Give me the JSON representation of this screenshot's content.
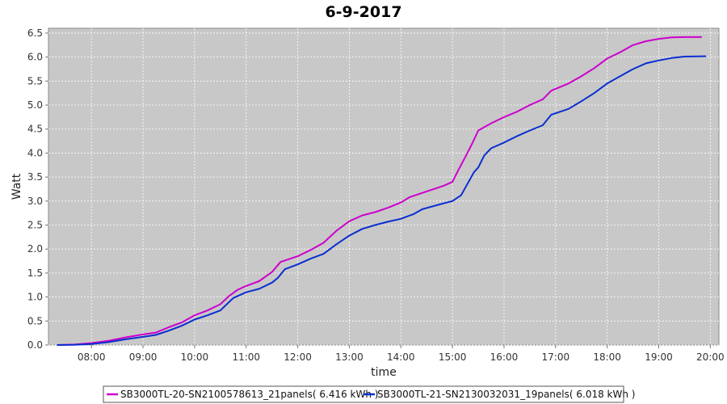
{
  "chart_data": {
    "type": "line",
    "title": "6-9-2017",
    "xlabel": "time",
    "ylabel": "Watt",
    "xlim": [
      "07:10",
      "20:10"
    ],
    "ylim": [
      0,
      6.6
    ],
    "x_ticks": [
      "08:00",
      "09:00",
      "10:00",
      "11:00",
      "12:00",
      "13:00",
      "14:00",
      "15:00",
      "16:00",
      "17:00",
      "18:00",
      "19:00",
      "20:00"
    ],
    "y_ticks": [
      "0.0",
      "0.5",
      "1.0",
      "1.5",
      "2.0",
      "2.5",
      "3.0",
      "3.5",
      "4.0",
      "4.5",
      "5.0",
      "5.5",
      "6.0",
      "6.5"
    ],
    "grid": true,
    "legend_position": "bottom",
    "plot_background": "#c8c8c8",
    "series": [
      {
        "name": "SB3000TL-20-SN2100578613_21panels( 6.416 kWh )",
        "color": "#cc00cc",
        "points": [
          [
            "07:20",
            0.0
          ],
          [
            "07:40",
            0.01
          ],
          [
            "08:00",
            0.04
          ],
          [
            "08:20",
            0.09
          ],
          [
            "08:40",
            0.16
          ],
          [
            "09:00",
            0.22
          ],
          [
            "09:15",
            0.26
          ],
          [
            "09:30",
            0.37
          ],
          [
            "09:45",
            0.47
          ],
          [
            "10:00",
            0.62
          ],
          [
            "10:15",
            0.72
          ],
          [
            "10:30",
            0.85
          ],
          [
            "10:40",
            1.02
          ],
          [
            "10:50",
            1.15
          ],
          [
            "11:00",
            1.23
          ],
          [
            "11:15",
            1.33
          ],
          [
            "11:30",
            1.52
          ],
          [
            "11:40",
            1.73
          ],
          [
            "12:00",
            1.85
          ],
          [
            "12:15",
            1.98
          ],
          [
            "12:30",
            2.13
          ],
          [
            "12:45",
            2.38
          ],
          [
            "13:00",
            2.58
          ],
          [
            "13:15",
            2.7
          ],
          [
            "13:30",
            2.77
          ],
          [
            "13:45",
            2.86
          ],
          [
            "14:00",
            2.97
          ],
          [
            "14:10",
            3.08
          ],
          [
            "14:30",
            3.2
          ],
          [
            "14:50",
            3.32
          ],
          [
            "15:00",
            3.4
          ],
          [
            "15:07",
            3.65
          ],
          [
            "15:15",
            3.92
          ],
          [
            "15:23",
            4.2
          ],
          [
            "15:30",
            4.47
          ],
          [
            "15:45",
            4.62
          ],
          [
            "16:00",
            4.75
          ],
          [
            "16:15",
            4.86
          ],
          [
            "16:30",
            5.0
          ],
          [
            "16:45",
            5.12
          ],
          [
            "16:55",
            5.3
          ],
          [
            "17:15",
            5.45
          ],
          [
            "17:30",
            5.6
          ],
          [
            "17:45",
            5.77
          ],
          [
            "18:00",
            5.97
          ],
          [
            "18:15",
            6.1
          ],
          [
            "18:30",
            6.25
          ],
          [
            "18:45",
            6.33
          ],
          [
            "19:00",
            6.38
          ],
          [
            "19:15",
            6.41
          ],
          [
            "19:30",
            6.416
          ],
          [
            "19:50",
            6.416
          ]
        ]
      },
      {
        "name": "SB3000TL-21-SN2130032031_19panels( 6.018 kWh )",
        "color": "#0a2ed0",
        "points": [
          [
            "07:20",
            0.0
          ],
          [
            "07:40",
            0.005
          ],
          [
            "08:00",
            0.02
          ],
          [
            "08:20",
            0.06
          ],
          [
            "08:40",
            0.12
          ],
          [
            "09:00",
            0.17
          ],
          [
            "09:15",
            0.21
          ],
          [
            "09:30",
            0.3
          ],
          [
            "09:45",
            0.4
          ],
          [
            "10:00",
            0.53
          ],
          [
            "10:15",
            0.62
          ],
          [
            "10:30",
            0.72
          ],
          [
            "10:45",
            0.98
          ],
          [
            "11:00",
            1.1
          ],
          [
            "11:15",
            1.17
          ],
          [
            "11:30",
            1.3
          ],
          [
            "11:37",
            1.4
          ],
          [
            "11:45",
            1.58
          ],
          [
            "12:00",
            1.68
          ],
          [
            "12:15",
            1.8
          ],
          [
            "12:30",
            1.9
          ],
          [
            "12:45",
            2.1
          ],
          [
            "13:00",
            2.28
          ],
          [
            "13:15",
            2.42
          ],
          [
            "13:30",
            2.5
          ],
          [
            "13:45",
            2.57
          ],
          [
            "14:00",
            2.63
          ],
          [
            "14:15",
            2.73
          ],
          [
            "14:25",
            2.83
          ],
          [
            "14:45",
            2.93
          ],
          [
            "15:00",
            3.0
          ],
          [
            "15:10",
            3.12
          ],
          [
            "15:15",
            3.28
          ],
          [
            "15:25",
            3.6
          ],
          [
            "15:30",
            3.7
          ],
          [
            "15:37",
            3.95
          ],
          [
            "15:45",
            4.1
          ],
          [
            "16:00",
            4.22
          ],
          [
            "16:15",
            4.35
          ],
          [
            "16:30",
            4.47
          ],
          [
            "16:45",
            4.58
          ],
          [
            "16:55",
            4.8
          ],
          [
            "17:15",
            4.92
          ],
          [
            "17:30",
            5.08
          ],
          [
            "17:45",
            5.25
          ],
          [
            "18:00",
            5.45
          ],
          [
            "18:15",
            5.6
          ],
          [
            "18:30",
            5.75
          ],
          [
            "18:45",
            5.87
          ],
          [
            "19:00",
            5.93
          ],
          [
            "19:15",
            5.98
          ],
          [
            "19:30",
            6.01
          ],
          [
            "19:55",
            6.018
          ]
        ]
      }
    ]
  }
}
